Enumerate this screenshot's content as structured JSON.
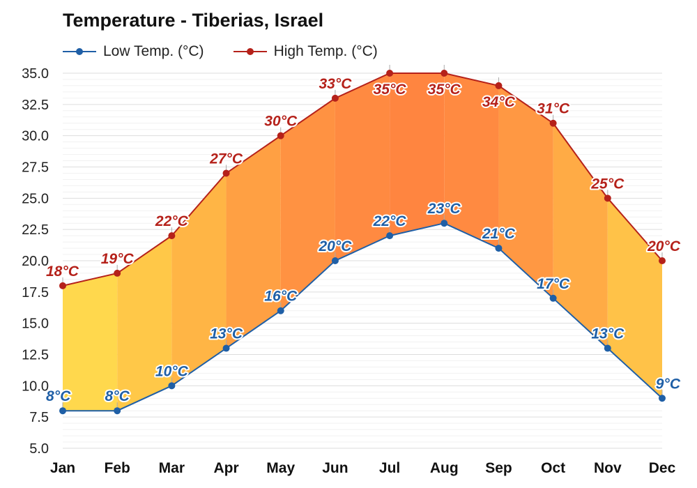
{
  "chart_data": {
    "type": "line",
    "title": "Temperature - Tiberias, Israel",
    "categories": [
      "Jan",
      "Feb",
      "Mar",
      "Apr",
      "May",
      "Jun",
      "Jul",
      "Aug",
      "Sep",
      "Oct",
      "Nov",
      "Dec"
    ],
    "series": [
      {
        "name": "Low Temp. (°C)",
        "values": [
          8,
          8,
          10,
          13,
          16,
          20,
          22,
          23,
          21,
          17,
          13,
          9
        ],
        "labels": [
          "8°C",
          "8°C",
          "10°C",
          "13°C",
          "16°C",
          "20°C",
          "22°C",
          "23°C",
          "21°C",
          "17°C",
          "13°C",
          "9°C"
        ],
        "color": "#1f5fa6"
      },
      {
        "name": "High Temp. (°C)",
        "values": [
          18,
          19,
          22,
          27,
          30,
          33,
          35,
          35,
          34,
          31,
          25,
          20
        ],
        "labels": [
          "18°C",
          "19°C",
          "22°C",
          "27°C",
          "30°C",
          "33°C",
          "35°C",
          "35°C",
          "34°C",
          "31°C",
          "25°C",
          "20°C"
        ],
        "color": "#b5211a"
      }
    ],
    "ylim": [
      5,
      35
    ],
    "yticks": [
      "5.0",
      "7.5",
      "10.0",
      "12.5",
      "15.0",
      "17.5",
      "20.0",
      "22.5",
      "25.0",
      "27.5",
      "30.0",
      "32.5",
      "35.0"
    ],
    "xlabel": "",
    "ylabel": "",
    "grid": true,
    "legend_position": "top-left",
    "band_colors": [
      "#ffd84d",
      "#ffc848",
      "#ffb545",
      "#ffa043",
      "#ff9242",
      "#ff8a41",
      "#ff8540",
      "#ff8a41",
      "#ff9843",
      "#ffab45",
      "#ffc248",
      "#ffd84d"
    ]
  }
}
